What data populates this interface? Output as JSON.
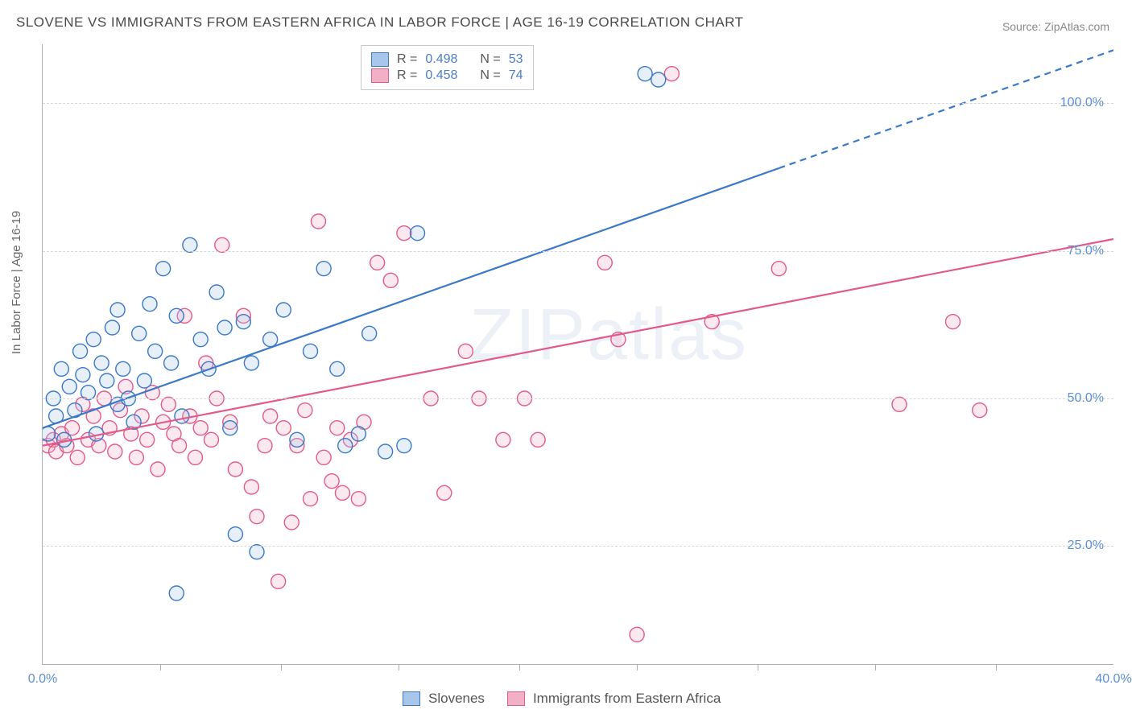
{
  "chart": {
    "title": "SLOVENE VS IMMIGRANTS FROM EASTERN AFRICA IN LABOR FORCE | AGE 16-19 CORRELATION CHART",
    "source": "Source: ZipAtlas.com",
    "watermark": "ZIPatlas",
    "ylabel": "In Labor Force | Age 16-19",
    "type": "scatter",
    "xlim": [
      0,
      40
    ],
    "ylim": [
      5,
      110
    ],
    "x_ticks": [
      {
        "pos": 0,
        "label": "0.0%"
      },
      {
        "pos": 40,
        "label": "40.0%"
      }
    ],
    "x_minor_ticks": [
      4.4,
      8.9,
      13.3,
      17.8,
      22.2,
      26.7,
      31.1,
      35.6
    ],
    "y_ticks": [
      {
        "pos": 25,
        "label": "25.0%"
      },
      {
        "pos": 50,
        "label": "50.0%"
      },
      {
        "pos": 75,
        "label": "75.0%"
      },
      {
        "pos": 100,
        "label": "100.0%"
      }
    ],
    "grid_color": "#d8d8d8",
    "background_color": "#ffffff",
    "axis_color": "#b0b0b0",
    "marker_radius": 9,
    "marker_stroke_width": 1.4,
    "marker_fill_opacity": 0.28,
    "line_width": 2.2,
    "series": [
      {
        "name": "Slovenes",
        "color_stroke": "#3a78c9",
        "color_fill": "#a8c6ea",
        "r_label": "R =",
        "r_value": "0.498",
        "n_label": "N =",
        "n_value": "53",
        "trend": {
          "x1": 0,
          "y1": 45,
          "x2": 40,
          "y2": 109,
          "solid_until_x": 27.5
        },
        "points": [
          [
            0.2,
            44
          ],
          [
            0.4,
            50
          ],
          [
            0.5,
            47
          ],
          [
            0.7,
            55
          ],
          [
            0.8,
            43
          ],
          [
            1.0,
            52
          ],
          [
            1.2,
            48
          ],
          [
            1.4,
            58
          ],
          [
            1.5,
            54
          ],
          [
            1.7,
            51
          ],
          [
            1.9,
            60
          ],
          [
            2.0,
            44
          ],
          [
            2.2,
            56
          ],
          [
            2.4,
            53
          ],
          [
            2.6,
            62
          ],
          [
            2.8,
            49
          ],
          [
            2.8,
            65
          ],
          [
            3.0,
            55
          ],
          [
            3.2,
            50
          ],
          [
            3.4,
            46
          ],
          [
            3.6,
            61
          ],
          [
            3.8,
            53
          ],
          [
            4.0,
            66
          ],
          [
            4.2,
            58
          ],
          [
            4.5,
            72
          ],
          [
            4.8,
            56
          ],
          [
            5.0,
            64
          ],
          [
            5.2,
            47
          ],
          [
            5.5,
            76
          ],
          [
            5.9,
            60
          ],
          [
            6.2,
            55
          ],
          [
            6.5,
            68
          ],
          [
            6.8,
            62
          ],
          [
            7.0,
            45
          ],
          [
            7.2,
            27
          ],
          [
            7.5,
            63
          ],
          [
            7.8,
            56
          ],
          [
            8.0,
            24
          ],
          [
            8.5,
            60
          ],
          [
            9.0,
            65
          ],
          [
            9.5,
            43
          ],
          [
            10.0,
            58
          ],
          [
            10.5,
            72
          ],
          [
            11.0,
            55
          ],
          [
            11.3,
            42
          ],
          [
            11.8,
            44
          ],
          [
            12.2,
            61
          ],
          [
            12.8,
            41
          ],
          [
            13.5,
            42
          ],
          [
            14.0,
            78
          ],
          [
            22.5,
            105
          ],
          [
            23.0,
            104
          ],
          [
            5.0,
            17
          ]
        ]
      },
      {
        "name": "Immigrants from Eastern Africa",
        "color_stroke": "#e35a8a",
        "color_fill": "#f2b0c6",
        "r_label": "R =",
        "r_value": "0.458",
        "n_label": "N =",
        "n_value": "74",
        "trend": {
          "x1": 0,
          "y1": 42,
          "x2": 40,
          "y2": 77,
          "solid_until_x": 40
        },
        "points": [
          [
            0.2,
            42
          ],
          [
            0.4,
            43
          ],
          [
            0.5,
            41
          ],
          [
            0.7,
            44
          ],
          [
            0.9,
            42
          ],
          [
            1.1,
            45
          ],
          [
            1.3,
            40
          ],
          [
            1.5,
            49
          ],
          [
            1.7,
            43
          ],
          [
            1.9,
            47
          ],
          [
            2.1,
            42
          ],
          [
            2.3,
            50
          ],
          [
            2.5,
            45
          ],
          [
            2.7,
            41
          ],
          [
            2.9,
            48
          ],
          [
            3.1,
            52
          ],
          [
            3.3,
            44
          ],
          [
            3.5,
            40
          ],
          [
            3.7,
            47
          ],
          [
            3.9,
            43
          ],
          [
            4.1,
            51
          ],
          [
            4.3,
            38
          ],
          [
            4.5,
            46
          ],
          [
            4.7,
            49
          ],
          [
            4.9,
            44
          ],
          [
            5.1,
            42
          ],
          [
            5.3,
            64
          ],
          [
            5.5,
            47
          ],
          [
            5.7,
            40
          ],
          [
            5.9,
            45
          ],
          [
            6.1,
            56
          ],
          [
            6.3,
            43
          ],
          [
            6.5,
            50
          ],
          [
            6.7,
            76
          ],
          [
            7.0,
            46
          ],
          [
            7.2,
            38
          ],
          [
            7.5,
            64
          ],
          [
            7.8,
            35
          ],
          [
            8.0,
            30
          ],
          [
            8.3,
            42
          ],
          [
            8.5,
            47
          ],
          [
            8.8,
            19
          ],
          [
            9.0,
            45
          ],
          [
            9.3,
            29
          ],
          [
            9.5,
            42
          ],
          [
            9.8,
            48
          ],
          [
            10.0,
            33
          ],
          [
            10.3,
            80
          ],
          [
            10.5,
            40
          ],
          [
            10.8,
            36
          ],
          [
            11.0,
            45
          ],
          [
            11.2,
            34
          ],
          [
            11.5,
            43
          ],
          [
            11.8,
            33
          ],
          [
            12.0,
            46
          ],
          [
            12.5,
            73
          ],
          [
            13.0,
            70
          ],
          [
            13.5,
            78
          ],
          [
            14.5,
            50
          ],
          [
            15.0,
            34
          ],
          [
            15.8,
            58
          ],
          [
            16.3,
            50
          ],
          [
            17.2,
            43
          ],
          [
            18.0,
            50
          ],
          [
            18.5,
            43
          ],
          [
            21.0,
            73
          ],
          [
            21.5,
            60
          ],
          [
            22.2,
            10
          ],
          [
            23.5,
            105
          ],
          [
            25.0,
            63
          ],
          [
            27.5,
            72
          ],
          [
            32.0,
            49
          ],
          [
            34.0,
            63
          ],
          [
            35.0,
            48
          ]
        ]
      }
    ],
    "legend_bottom": [
      {
        "label": "Slovenes",
        "swatch_fill": "#a8c6ea",
        "swatch_stroke": "#3a78c9"
      },
      {
        "label": "Immigrants from Eastern Africa",
        "swatch_fill": "#f2b0c6",
        "swatch_stroke": "#e35a8a"
      }
    ]
  }
}
